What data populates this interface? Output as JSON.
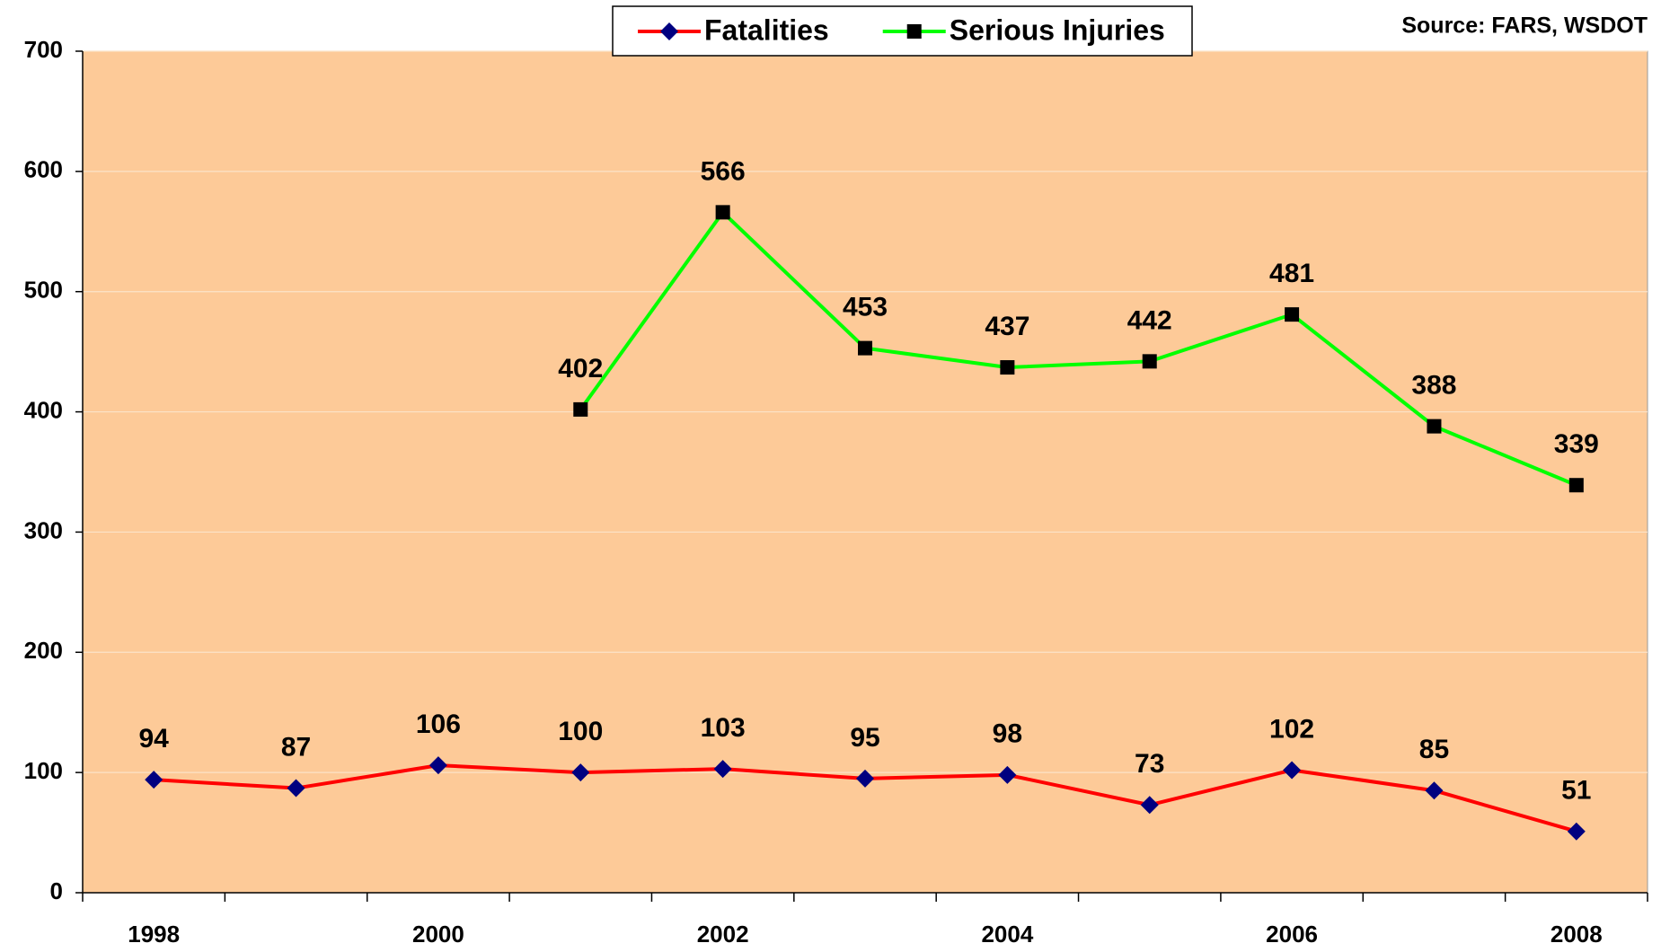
{
  "chart_data": {
    "type": "line",
    "source": "Source: FARS, WSDOT",
    "categories": [
      "1998",
      null,
      "2000",
      null,
      "2002",
      null,
      "2004",
      null,
      "2006",
      null,
      "2008"
    ],
    "series": [
      {
        "name": "Fatalities",
        "color": "#ff0000",
        "marker": "diamond",
        "marker_color": "#000080",
        "values": [
          94,
          87,
          106,
          100,
          103,
          95,
          98,
          73,
          102,
          85,
          51
        ]
      },
      {
        "name": "Serious Injuries",
        "color": "#00ff00",
        "marker": "square",
        "marker_color": "#000000",
        "values": [
          null,
          null,
          null,
          402,
          566,
          453,
          437,
          442,
          481,
          388,
          339
        ]
      }
    ],
    "ylim": [
      0,
      700
    ],
    "yticks": [
      0,
      100,
      200,
      300,
      400,
      500,
      600,
      700
    ],
    "grid": true,
    "background": "#fdca98",
    "legend": "top"
  }
}
